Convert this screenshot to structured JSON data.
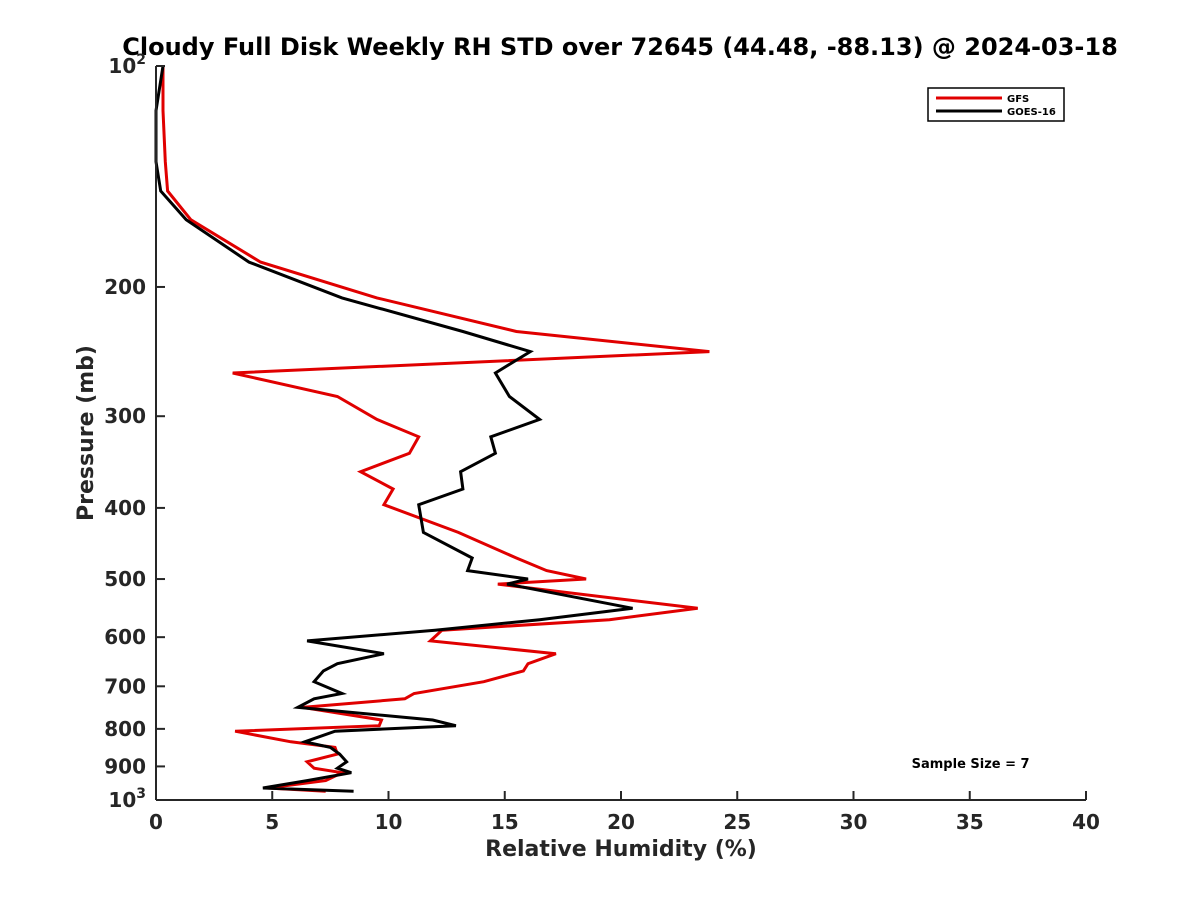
{
  "chart_data": {
    "type": "line",
    "title": "Cloudy Full Disk Weekly RH STD over 72645 (44.48, -88.13) @ 2024-03-18",
    "xlabel": "Relative Humidity (%)",
    "ylabel": "Pressure (mb)",
    "xlim": [
      0,
      40
    ],
    "ylim": [
      100,
      1000
    ],
    "y_scale": "log",
    "y_reversed": true,
    "grid": false,
    "legend_position": "top-right",
    "x_ticks": [
      0,
      5,
      10,
      15,
      20,
      25,
      30,
      35,
      40
    ],
    "x_tick_labels": [
      "0",
      "5",
      "10",
      "15",
      "20",
      "25",
      "30",
      "35",
      "40"
    ],
    "y_ticks": [
      100,
      200,
      300,
      400,
      500,
      600,
      700,
      800,
      900,
      1000
    ],
    "y_tick_labels": [
      "10^2",
      "200",
      "300",
      "400",
      "500",
      "600",
      "700",
      "800",
      "900",
      "10^3"
    ],
    "series": [
      {
        "name": "GFS",
        "color": "#e00000",
        "points": [
          [
            0.3,
            100
          ],
          [
            0.3,
            115
          ],
          [
            0.4,
            135
          ],
          [
            0.5,
            148
          ],
          [
            1.5,
            162
          ],
          [
            4.5,
            185
          ],
          [
            9.5,
            207
          ],
          [
            15.5,
            230
          ],
          [
            23.8,
            245
          ],
          [
            3.3,
            262
          ],
          [
            7.8,
            282
          ],
          [
            9.5,
            303
          ],
          [
            11.3,
            320
          ],
          [
            10.9,
            337
          ],
          [
            8.8,
            357
          ],
          [
            10.2,
            377
          ],
          [
            9.8,
            396
          ],
          [
            13.0,
            432
          ],
          [
            15.5,
            468
          ],
          [
            16.8,
            487
          ],
          [
            18.5,
            500
          ],
          [
            14.7,
            508
          ],
          [
            23.3,
            548
          ],
          [
            19.5,
            568
          ],
          [
            12.3,
            587
          ],
          [
            11.8,
            607
          ],
          [
            17.2,
            632
          ],
          [
            16.0,
            652
          ],
          [
            15.8,
            667
          ],
          [
            14.1,
            690
          ],
          [
            11.1,
            716
          ],
          [
            10.7,
            728
          ],
          [
            6.3,
            748
          ],
          [
            9.7,
            778
          ],
          [
            9.6,
            792
          ],
          [
            3.4,
            806
          ],
          [
            5.8,
            833
          ],
          [
            7.7,
            848
          ],
          [
            7.8,
            866
          ],
          [
            6.5,
            887
          ],
          [
            6.8,
            905
          ],
          [
            8.0,
            918
          ],
          [
            7.3,
            941
          ],
          [
            4.8,
            963
          ],
          [
            7.3,
            973
          ]
        ]
      },
      {
        "name": "GOES-16",
        "color": "#000000",
        "points": [
          [
            0.3,
            100
          ],
          [
            0.0,
            115
          ],
          [
            0.0,
            135
          ],
          [
            0.2,
            148
          ],
          [
            1.3,
            162
          ],
          [
            4.0,
            185
          ],
          [
            8.0,
            207
          ],
          [
            13.2,
            230
          ],
          [
            16.1,
            245
          ],
          [
            14.6,
            262
          ],
          [
            15.2,
            282
          ],
          [
            16.5,
            303
          ],
          [
            14.4,
            320
          ],
          [
            14.6,
            337
          ],
          [
            13.1,
            357
          ],
          [
            13.2,
            377
          ],
          [
            11.3,
            396
          ],
          [
            11.5,
            432
          ],
          [
            13.6,
            468
          ],
          [
            13.4,
            487
          ],
          [
            16.0,
            500
          ],
          [
            15.1,
            508
          ],
          [
            20.5,
            548
          ],
          [
            16.5,
            568
          ],
          [
            12.0,
            587
          ],
          [
            6.5,
            607
          ],
          [
            9.8,
            632
          ],
          [
            7.8,
            652
          ],
          [
            7.2,
            667
          ],
          [
            6.8,
            690
          ],
          [
            8.0,
            716
          ],
          [
            6.8,
            728
          ],
          [
            6.1,
            748
          ],
          [
            11.9,
            778
          ],
          [
            12.9,
            792
          ],
          [
            7.7,
            806
          ],
          [
            6.4,
            833
          ],
          [
            7.5,
            848
          ],
          [
            7.9,
            866
          ],
          [
            8.2,
            887
          ],
          [
            7.8,
            905
          ],
          [
            8.4,
            918
          ],
          [
            6.5,
            941
          ],
          [
            4.6,
            963
          ],
          [
            8.5,
            973
          ]
        ]
      }
    ],
    "annotations": [
      {
        "text": "Sample Size = 7",
        "x": 32.5,
        "y": 905
      }
    ]
  }
}
